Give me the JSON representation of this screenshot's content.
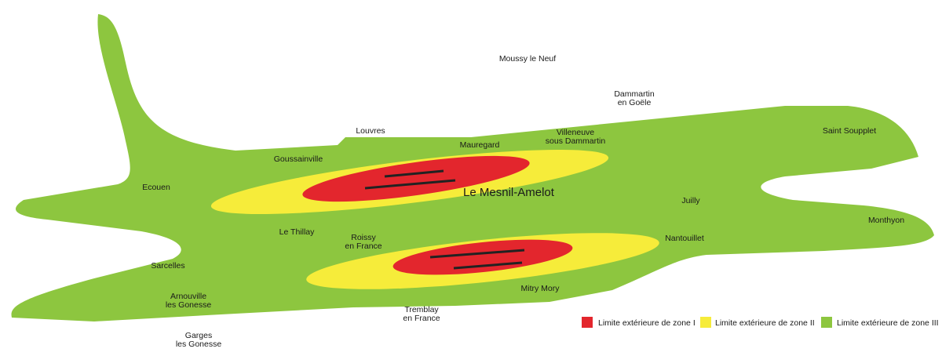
{
  "places": [
    {
      "lines": [
        "Moussy le Neuf"
      ]
    },
    {
      "lines": [
        "Dammartin",
        "en Goële"
      ]
    },
    {
      "lines": [
        "Louvres"
      ]
    },
    {
      "lines": [
        "Villeneuve",
        "sous Dammartin"
      ]
    },
    {
      "lines": [
        "Saint Soupplet"
      ]
    },
    {
      "lines": [
        "Mauregard"
      ]
    },
    {
      "lines": [
        "Goussainville"
      ]
    },
    {
      "lines": [
        "Ecouen"
      ]
    },
    {
      "lines": [
        "Le Mesnil-Amelot"
      ]
    },
    {
      "lines": [
        "Juilly"
      ]
    },
    {
      "lines": [
        "Monthyon"
      ]
    },
    {
      "lines": [
        "Le Thillay"
      ]
    },
    {
      "lines": [
        "Roissy",
        "en France"
      ]
    },
    {
      "lines": [
        "Nantouillet"
      ]
    },
    {
      "lines": [
        "Sarcelles"
      ]
    },
    {
      "lines": [
        "Mitry Mory"
      ]
    },
    {
      "lines": [
        "Arnouville",
        "les Gonesse"
      ]
    },
    {
      "lines": [
        "Tremblay",
        "en France"
      ]
    },
    {
      "lines": [
        "Garges",
        "les Gonesse"
      ]
    }
  ],
  "legend": [
    {
      "label": "Limite extérieure de zone I",
      "color": "#e3262d"
    },
    {
      "label": "Limite extérieure de zone II",
      "color": "#f6ec3a"
    },
    {
      "label": "Limite extérieure de zone III",
      "color": "#8dc63f"
    }
  ]
}
